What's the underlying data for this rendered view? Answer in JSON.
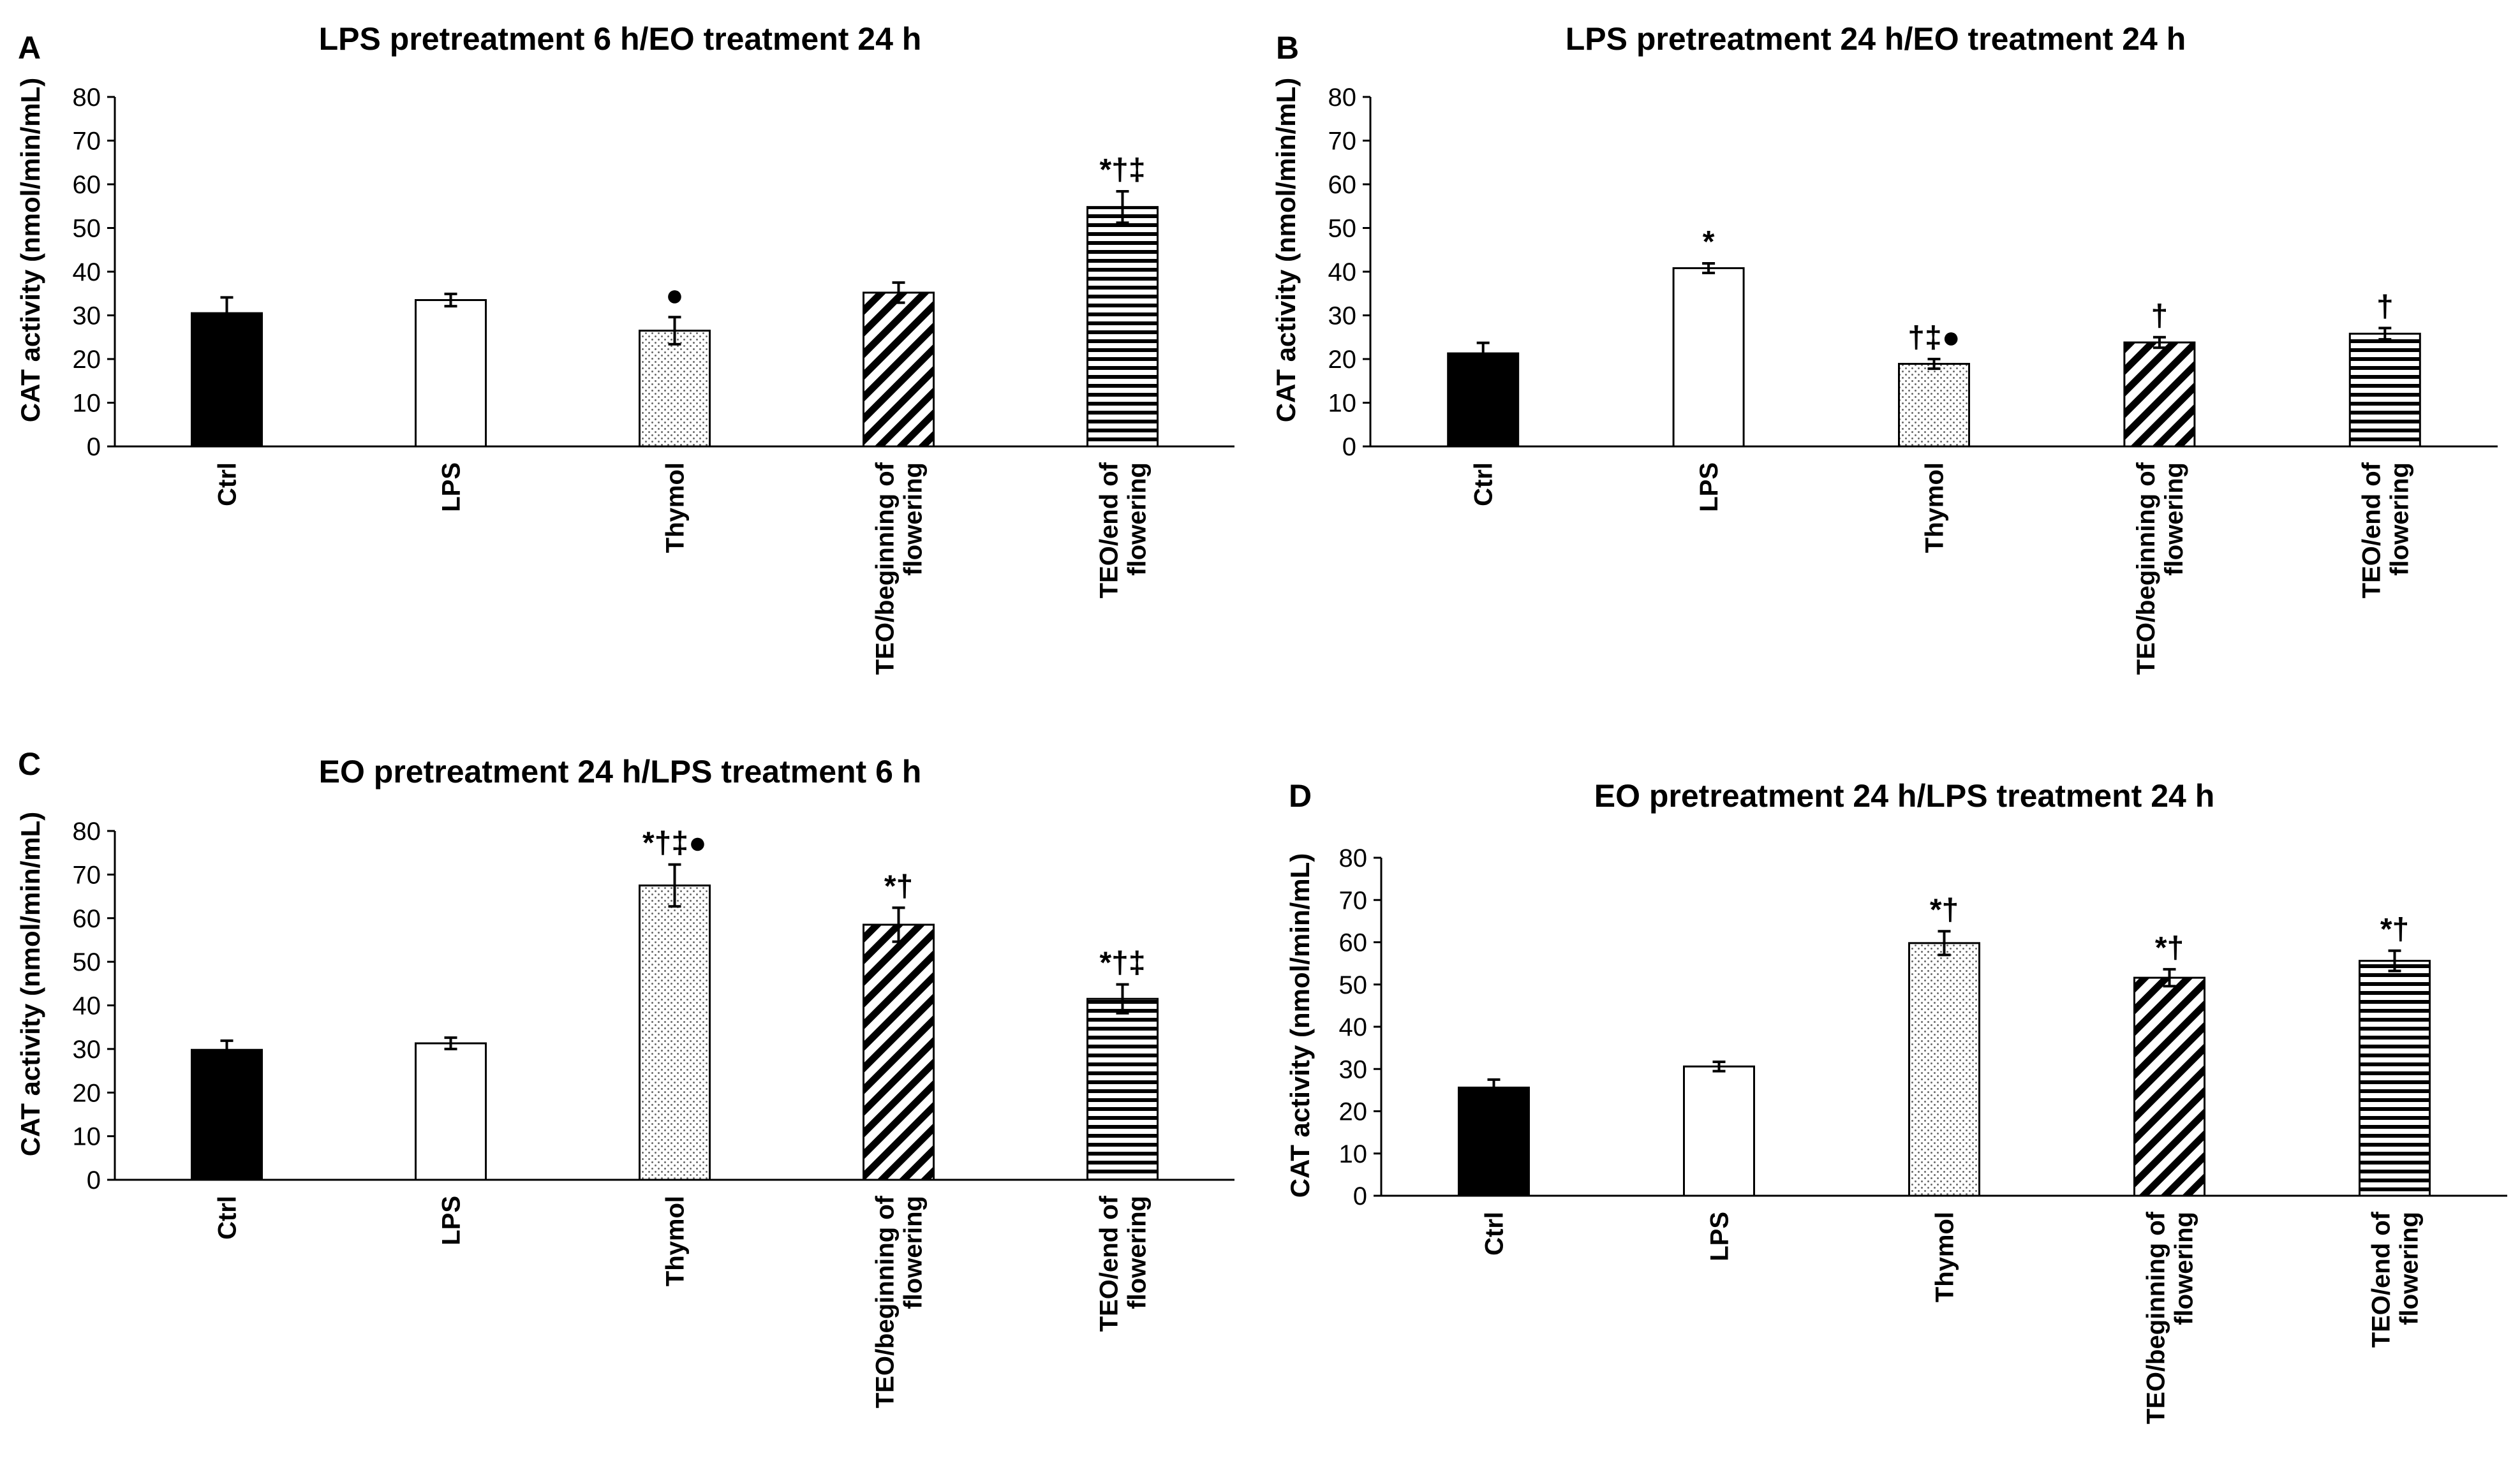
{
  "figure": {
    "background": "#ffffff",
    "axis_color": "#000000"
  },
  "legend_patterns": [
    {
      "category": "Ctrl",
      "fill": "solid-black"
    },
    {
      "category": "LPS",
      "fill": "white"
    },
    {
      "category": "Thymol",
      "fill": "dotted-stipple"
    },
    {
      "category": "TEO/beginning of flowering",
      "fill": "diagonal-hatch"
    },
    {
      "category": "TEO/end of flowering",
      "fill": "horizontal-lines"
    }
  ],
  "chart_data": [
    {
      "panel": "A",
      "type": "bar",
      "title": "LPS pretreatment 6 h/EO treatment 24 h",
      "xlabel": "",
      "ylabel": "CAT activity (nmol/min/mL)",
      "ylim": [
        0,
        80
      ],
      "yticks": [
        "0",
        "10",
        "20",
        "30",
        "40",
        "50",
        "60",
        "70",
        "80"
      ],
      "categories": [
        [
          "Ctrl"
        ],
        [
          "LPS"
        ],
        [
          "Thymol"
        ],
        [
          "TEO/beginning of",
          "flowering"
        ],
        [
          "TEO/end of",
          "flowering"
        ]
      ],
      "values": [
        30.5,
        33.5,
        26.5,
        35.2,
        54.8
      ],
      "errors": [
        3.6,
        1.4,
        3.1,
        2.3,
        3.6
      ],
      "annotations": [
        "",
        "",
        "●",
        "",
        "*†‡"
      ]
    },
    {
      "panel": "B",
      "type": "bar",
      "title": "LPS pretreatment 24 h/EO treatment 24 h",
      "xlabel": "",
      "ylabel": "CAT activity (nmol/min/mL)",
      "ylim": [
        0,
        80
      ],
      "yticks": [
        "0",
        "10",
        "20",
        "30",
        "40",
        "50",
        "60",
        "70",
        "80"
      ],
      "categories": [
        [
          "Ctrl"
        ],
        [
          "LPS"
        ],
        [
          "Thymol"
        ],
        [
          "TEO/beginning of",
          "flowering"
        ],
        [
          "TEO/end of",
          "flowering"
        ]
      ],
      "values": [
        21.3,
        40.8,
        18.9,
        23.8,
        25.8
      ],
      "errors": [
        2.4,
        1.1,
        1.1,
        1.2,
        1.3
      ],
      "annotations": [
        "",
        "*",
        "†‡●",
        "†",
        "†"
      ]
    },
    {
      "panel": "C",
      "type": "bar",
      "title": "EO pretreatment 24 h/LPS treatment 6 h",
      "xlabel": "",
      "ylabel": "CAT activity (nmol/min/mL)",
      "ylim": [
        0,
        80
      ],
      "yticks": [
        "0",
        "10",
        "20",
        "30",
        "40",
        "50",
        "60",
        "70",
        "80"
      ],
      "categories": [
        [
          "Ctrl"
        ],
        [
          "LPS"
        ],
        [
          "Thymol"
        ],
        [
          "TEO/beginning of",
          "flowering"
        ],
        [
          "TEO/end of",
          "flowering"
        ]
      ],
      "values": [
        29.8,
        31.3,
        67.5,
        58.5,
        41.5
      ],
      "errors": [
        2.1,
        1.3,
        4.8,
        3.9,
        3.3
      ],
      "annotations": [
        "",
        "",
        "*†‡●",
        "*†",
        "*†‡"
      ]
    },
    {
      "panel": "D",
      "type": "bar",
      "title": "EO pretreatment 24 h/LPS treatment 24 h",
      "xlabel": "",
      "ylabel": "CAT activity (nmol/min/mL)",
      "ylim": [
        0,
        80
      ],
      "yticks": [
        "0",
        "10",
        "20",
        "30",
        "40",
        "50",
        "60",
        "70",
        "80"
      ],
      "categories": [
        [
          "Ctrl"
        ],
        [
          "LPS"
        ],
        [
          "Thymol"
        ],
        [
          "TEO/beginning of",
          "flowering"
        ],
        [
          "TEO/end of",
          "flowering"
        ]
      ],
      "values": [
        25.6,
        30.6,
        59.8,
        51.6,
        55.6
      ],
      "errors": [
        1.9,
        1.1,
        2.8,
        2.0,
        2.4
      ],
      "annotations": [
        "",
        "",
        "*†",
        "*†",
        "*†"
      ]
    }
  ]
}
